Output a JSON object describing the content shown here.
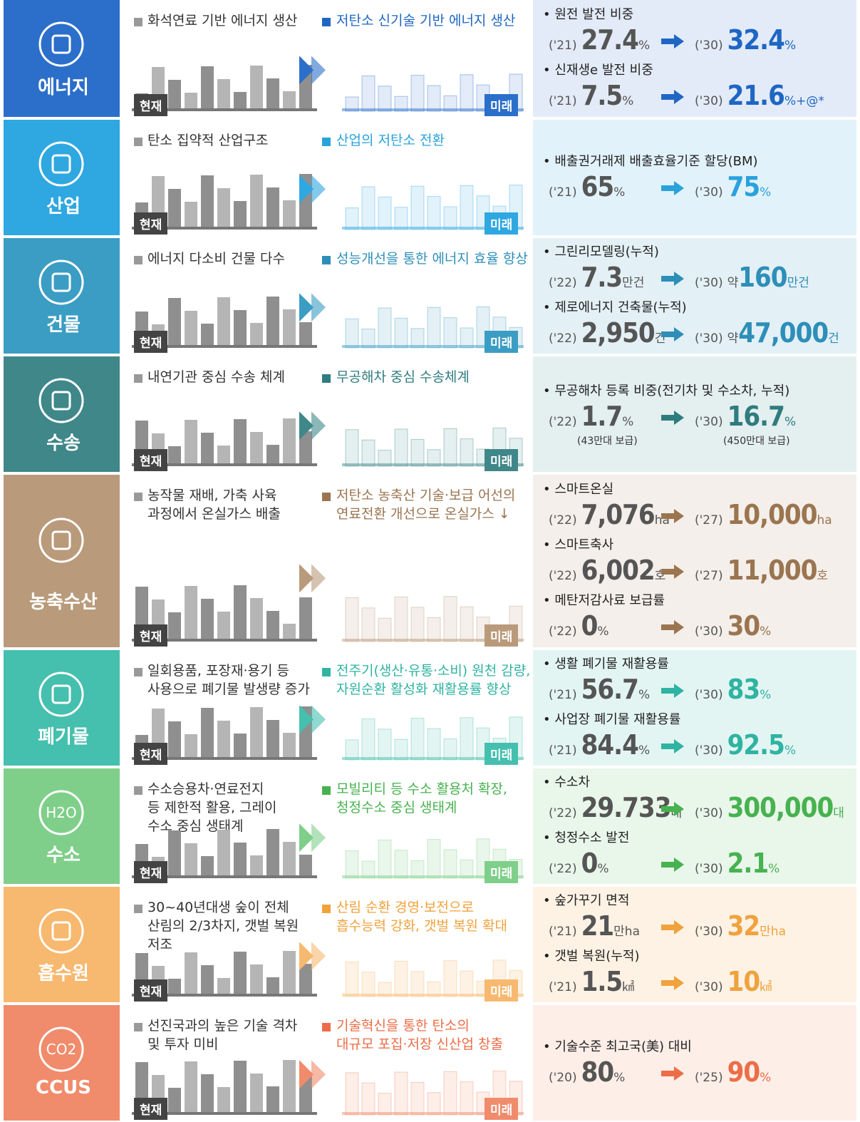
{
  "now_label": "현재",
  "future_label": "미래",
  "sectors": [
    {
      "name": "에너지",
      "color": "#2b6fca",
      "tint": "#e3ebf8",
      "accent": "#1f66c4",
      "current": [
        "화석연료 기반 에너지 생산"
      ],
      "future": [
        "저탄소 신기술 기반 에너지 생산"
      ],
      "stats": [
        {
          "label": "원전 발전 비중",
          "from": {
            "year": "('21)",
            "value": "27.4",
            "unit": "%"
          },
          "to": {
            "year": "('30)",
            "value": "32.4",
            "unit": "%"
          }
        },
        {
          "label": "신재생e 발전 비중",
          "from": {
            "year": "('21)",
            "value": "7.5",
            "unit": "%"
          },
          "to": {
            "year": "('30)",
            "value": "21.6",
            "unit": "%+@*"
          }
        }
      ]
    },
    {
      "name": "산업",
      "color": "#2fa7e1",
      "tint": "#e2f2fb",
      "accent": "#2aa2dc",
      "current": [
        "탄소 집약적 산업구조"
      ],
      "future": [
        "산업의 저탄소 전환"
      ],
      "stats": [
        {
          "label": "배출권거래제 배출효율기준 할당(BM)",
          "from": {
            "year": "('21)",
            "value": "65",
            "unit": "%"
          },
          "to": {
            "year": "('30)",
            "value": "75",
            "unit": "%"
          }
        }
      ]
    },
    {
      "name": "건물",
      "color": "#3b9dc3",
      "tint": "#e3f0f6",
      "accent": "#2d8fb8",
      "current": [
        "에너지 다소비 건물 다수"
      ],
      "future": [
        "성능개선을 통한 에너지 효율 향상"
      ],
      "stats": [
        {
          "label": "그린리모델링(누적)",
          "from": {
            "year": "('22)",
            "value": "7.3",
            "unit": "만건"
          },
          "to": {
            "year": "('30)",
            "prefix": "약",
            "value": "160",
            "unit": "만건"
          }
        },
        {
          "label": "제로에너지 건축물(누적)",
          "from": {
            "year": "('22)",
            "value": "2,950",
            "unit": "건"
          },
          "to": {
            "year": "('30)",
            "prefix": "약",
            "value": "47,000",
            "unit": "건"
          }
        }
      ]
    },
    {
      "name": "수송",
      "color": "#3f8789",
      "tint": "#e4efef",
      "accent": "#2f7c7f",
      "current": [
        "내연기관 중심 수송 체계"
      ],
      "future": [
        "무공해차 중심 수송체계"
      ],
      "stats": [
        {
          "label": "무공해차 등록 비중(전기차 및 수소차, 누적)",
          "from": {
            "year": "('22)",
            "value": "1.7",
            "unit": "%",
            "note": "(43만대 보급)"
          },
          "to": {
            "year": "('30)",
            "value": "16.7",
            "unit": "%",
            "note": "(450만대 보급)"
          }
        }
      ]
    },
    {
      "name": "농축수산",
      "color": "#b99a7a",
      "tint": "#f4efea",
      "accent": "#9a7550",
      "current": [
        "농작물 재배, 가축 사육",
        "과정에서 온실가스 배출"
      ],
      "future": [
        "저탄소 농축산 기술·보급 어선의",
        "연료전환 개선으로 온실가스 ↓"
      ],
      "stats": [
        {
          "label": "스마트온실",
          "from": {
            "year": "('22)",
            "value": "7,076",
            "unit": "ha"
          },
          "to": {
            "year": "('27)",
            "value": "10,000",
            "unit": "ha"
          }
        },
        {
          "label": "스마트축사",
          "from": {
            "year": "('22)",
            "value": "6,002",
            "unit": "호"
          },
          "to": {
            "year": "('27)",
            "value": "11,000",
            "unit": "호"
          }
        },
        {
          "label": "메탄저감사료 보급률",
          "from": {
            "year": "('22)",
            "value": "0",
            "unit": "%"
          },
          "to": {
            "year": "('30)",
            "value": "30",
            "unit": "%"
          }
        }
      ]
    },
    {
      "name": "폐기물",
      "color": "#45bfae",
      "tint": "#e3f5f2",
      "accent": "#2fb3a2",
      "current": [
        "일회용품, 포장재·용기 등",
        "사용으로 폐기물 발생량 증가"
      ],
      "future": [
        "전주기(생산·유통·소비) 원천 감량,",
        "자원순환 활성화 재활용률 향상"
      ],
      "stats": [
        {
          "label": "생활 폐기물 재활용률",
          "from": {
            "year": "('21)",
            "value": "56.7",
            "unit": "%"
          },
          "to": {
            "year": "('30)",
            "value": "83",
            "unit": "%"
          }
        },
        {
          "label": "사업장 폐기물 재활용률",
          "from": {
            "year": "('21)",
            "value": "84.4",
            "unit": "%"
          },
          "to": {
            "year": "('30)",
            "value": "92.5",
            "unit": "%"
          }
        }
      ]
    },
    {
      "name": "수소",
      "icon_text": "H2O",
      "color": "#7fcf8a",
      "tint": "#e9f6ea",
      "accent": "#47b24f",
      "current": [
        "수소승용차·연료전지",
        "등 제한적 활용, 그레이",
        "수소 중심 생태계"
      ],
      "future": [
        "모빌리티 등 수소 활용처 확장,",
        "청정수소 중심 생태계"
      ],
      "stats": [
        {
          "label": "수소차",
          "from": {
            "year": "('22)",
            "value": "29.733",
            "unit": "대"
          },
          "to": {
            "year": "('30)",
            "value": "300,000",
            "unit": "대"
          }
        },
        {
          "label": "청정수소 발전",
          "from": {
            "year": "('22)",
            "value": "0",
            "unit": "%"
          },
          "to": {
            "year": "('30)",
            "value": "2.1",
            "unit": "%"
          }
        }
      ]
    },
    {
      "name": "흡수원",
      "color": "#f7b96f",
      "tint": "#fdf2e4",
      "accent": "#f0a23c",
      "current": [
        "30~40년대생 숲이 전체",
        "산림의 2/3차지, 갯벌 복원",
        "저조"
      ],
      "future": [
        "산림 순환 경영·보전으로",
        "흡수능력 강화, 갯벌 복원 확대"
      ],
      "stats": [
        {
          "label": "숲가꾸기 면적",
          "from": {
            "year": "('21)",
            "value": "21",
            "unit": "만ha"
          },
          "to": {
            "year": "('30)",
            "value": "32",
            "unit": "만ha"
          }
        },
        {
          "label": "갯벌 복원(누적)",
          "from": {
            "year": "('21)",
            "value": "1.5",
            "unit": "㎢"
          },
          "to": {
            "year": "('30)",
            "value": "10",
            "unit": "㎢"
          }
        }
      ]
    },
    {
      "name": "CCUS",
      "icon_text": "CO2",
      "color": "#f08b6b",
      "tint": "#fdeee8",
      "accent": "#ec6d47",
      "current": [
        "선진국과의 높은 기술 격차",
        "및 투자 미비"
      ],
      "future": [
        "기술혁신을 통한 탄소의",
        "대규모 포집·저장 신산업 창출"
      ],
      "stats": [
        {
          "label": "기술수준 최고국(美) 대비",
          "from": {
            "year": "('20)",
            "value": "80",
            "unit": "%"
          },
          "to": {
            "year": "('25)",
            "value": "90",
            "unit": "%"
          }
        }
      ]
    }
  ]
}
